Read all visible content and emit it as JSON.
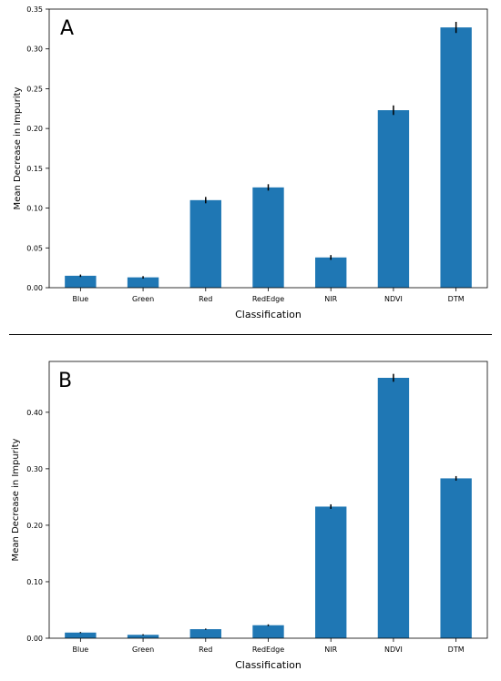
{
  "chart_data": [
    {
      "type": "bar",
      "panel_label": "A",
      "categories": [
        "Blue",
        "Green",
        "Red",
        "RedEdge",
        "NIR",
        "NDVI",
        "DTM"
      ],
      "values": [
        0.015,
        0.013,
        0.11,
        0.126,
        0.038,
        0.223,
        0.327
      ],
      "errors": [
        0.0015,
        0.0015,
        0.004,
        0.004,
        0.003,
        0.006,
        0.007
      ],
      "xlabel": "Classification",
      "ylabel": "Mean Decrease in Impurity",
      "ylim": [
        0,
        0.35
      ],
      "yticks": [
        0.0,
        0.05,
        0.1,
        0.15,
        0.2,
        0.25,
        0.3,
        0.35
      ],
      "ytick_labels": [
        "0.00",
        "0.05",
        "0.10",
        "0.15",
        "0.20",
        "0.25",
        "0.30",
        "0.35"
      ],
      "bar_color": "#1f77b4",
      "grid": false
    },
    {
      "type": "bar",
      "panel_label": "B",
      "categories": [
        "Blue",
        "Green",
        "Red",
        "RedEdge",
        "NIR",
        "NDVI",
        "DTM"
      ],
      "values": [
        0.01,
        0.006,
        0.016,
        0.023,
        0.233,
        0.461,
        0.283
      ],
      "errors": [
        0.001,
        0.001,
        0.001,
        0.0015,
        0.004,
        0.007,
        0.004
      ],
      "xlabel": "Classification",
      "ylabel": "Mean Decrease in Impurity",
      "ylim": [
        0,
        0.49
      ],
      "yticks": [
        0.0,
        0.1,
        0.2,
        0.3,
        0.4
      ],
      "ytick_labels": [
        "0.00",
        "0.10",
        "0.20",
        "0.30",
        "0.40"
      ],
      "bar_color": "#1f77b4",
      "grid": false
    }
  ]
}
